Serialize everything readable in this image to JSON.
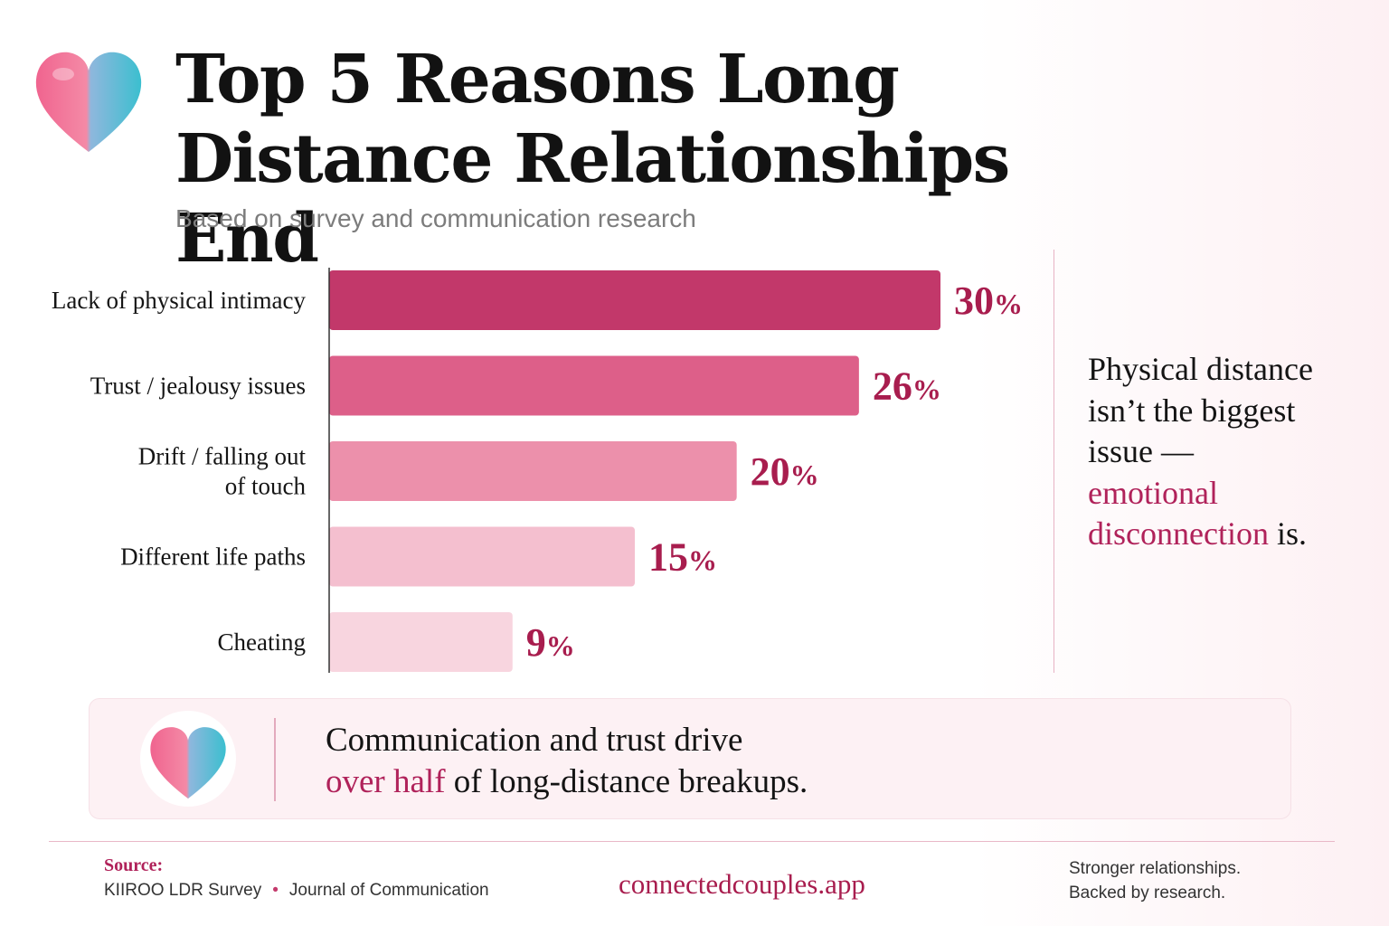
{
  "header": {
    "title_line1": "Top 5 Reasons Long",
    "title_line2": "Distance Relationships End",
    "subtitle": "Based on survey and communication research",
    "logo_icon": "heart-icon"
  },
  "chart_data": {
    "type": "bar",
    "orientation": "horizontal",
    "categories": [
      "Lack of physical intimacy",
      "Trust / jealousy issues",
      "Drift / falling out of touch",
      "Different life paths",
      "Cheating"
    ],
    "category_lines": [
      [
        "Lack of physical intimacy"
      ],
      [
        "Trust / jealousy issues"
      ],
      [
        "Drift / falling out",
        "of touch"
      ],
      [
        "Different life paths"
      ],
      [
        "Cheating"
      ]
    ],
    "values": [
      30,
      26,
      20,
      15,
      9
    ],
    "value_suffix": "%",
    "xlim": [
      0,
      30
    ],
    "grid": false,
    "bar_colors": [
      "#c2386a",
      "#dd5f89",
      "#ec90ab",
      "#f4bfcf",
      "#f8d5df"
    ]
  },
  "insight": {
    "line1": "Physical distance",
    "line2": "isn’t the biggest",
    "line3": "issue —",
    "highlight1": "emotional",
    "highlight2": "disconnection",
    "tail": " is."
  },
  "callout": {
    "line1": "Communication and trust drive",
    "highlight": "over half",
    "line2_rest": " of long-distance breakups.",
    "icon": "heart-icon"
  },
  "footer": {
    "source_label": "Source:",
    "source1": "KIIROO LDR Survey",
    "separator": "•",
    "source2": "Journal of Communication",
    "site": "connectedcouples.app",
    "tagline1": "Stronger relationships.",
    "tagline2": "Backed by research."
  },
  "colors": {
    "accent": "#a81d4e",
    "heart_pink": "#f0648f",
    "heart_teal": "#3bbfcf"
  }
}
